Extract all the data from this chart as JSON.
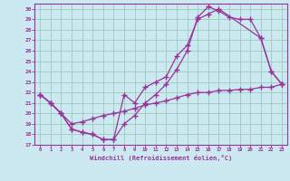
{
  "xlabel": "Windchill (Refroidissement éolien,°C)",
  "xlim": [
    -0.5,
    23.5
  ],
  "ylim": [
    17,
    30.5
  ],
  "yticks": [
    17,
    18,
    19,
    20,
    21,
    22,
    23,
    24,
    25,
    26,
    27,
    28,
    29,
    30
  ],
  "xticks": [
    0,
    1,
    2,
    3,
    4,
    5,
    6,
    7,
    8,
    9,
    10,
    11,
    12,
    13,
    14,
    15,
    16,
    17,
    18,
    19,
    20,
    21,
    22,
    23
  ],
  "bg_color": "#cce8f0",
  "line_color": "#993399",
  "grid_color": "#99ccbb",
  "curve1_x": [
    0,
    1,
    2,
    3,
    4,
    5,
    6,
    7,
    8,
    9,
    10,
    11,
    12,
    13,
    14,
    15,
    16,
    17,
    21,
    22,
    23
  ],
  "curve1_y": [
    21.8,
    21.0,
    20.0,
    18.5,
    18.2,
    18.0,
    17.5,
    17.5,
    21.8,
    21.0,
    22.5,
    23.0,
    23.5,
    25.5,
    26.5,
    29.0,
    29.5,
    30.0,
    27.2,
    24.0,
    22.8
  ],
  "curve2_x": [
    0,
    1,
    2,
    3,
    4,
    5,
    6,
    7,
    8,
    9,
    10,
    11,
    12,
    13,
    14,
    15,
    16,
    17,
    18,
    19,
    20,
    21,
    22,
    23
  ],
  "curve2_y": [
    21.8,
    21.0,
    20.0,
    18.5,
    18.2,
    18.0,
    17.5,
    17.5,
    19.0,
    19.8,
    21.0,
    21.8,
    22.8,
    24.2,
    26.0,
    29.2,
    30.2,
    29.8,
    29.2,
    29.0,
    29.0,
    27.2,
    24.0,
    22.8
  ],
  "curve3_x": [
    0,
    1,
    2,
    3,
    4,
    5,
    6,
    7,
    8,
    9,
    10,
    11,
    12,
    13,
    14,
    15,
    16,
    17,
    18,
    19,
    20,
    21,
    22,
    23
  ],
  "curve3_y": [
    21.8,
    21.0,
    20.0,
    19.0,
    19.2,
    19.5,
    19.8,
    20.0,
    20.2,
    20.5,
    20.8,
    21.0,
    21.2,
    21.5,
    21.8,
    22.0,
    22.0,
    22.2,
    22.2,
    22.3,
    22.3,
    22.5,
    22.5,
    22.8
  ]
}
